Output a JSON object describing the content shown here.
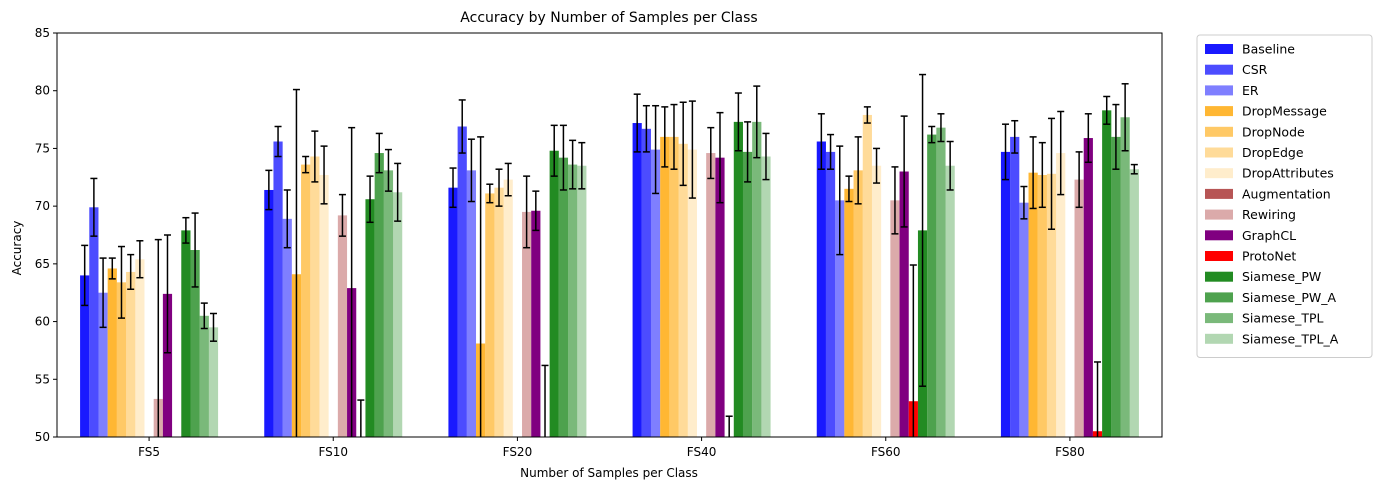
{
  "chart_data": {
    "type": "bar",
    "title": "Accuracy by Number of Samples per Class",
    "xlabel": "Number of Samples per Class",
    "ylabel": "Accuracy",
    "ylim": [
      50,
      85
    ],
    "yticks": [
      50,
      55,
      60,
      65,
      70,
      75,
      80,
      85
    ],
    "categories": [
      "FS5",
      "FS10",
      "FS20",
      "FS40",
      "FS60",
      "FS80"
    ],
    "legend_position": "outside-right",
    "grid": false,
    "series": [
      {
        "name": "Baseline",
        "color": "#0000ff",
        "opacity": 0.9,
        "values": [
          64.0,
          71.4,
          71.6,
          77.2,
          75.6,
          74.7
        ],
        "errors": [
          2.6,
          1.7,
          1.7,
          2.5,
          2.4,
          2.4
        ]
      },
      {
        "name": "CSR",
        "color": "#0000ff",
        "opacity": 0.7,
        "values": [
          69.9,
          75.6,
          76.9,
          76.7,
          74.7,
          76.0
        ],
        "errors": [
          2.5,
          1.3,
          2.3,
          2.0,
          1.5,
          1.4
        ]
      },
      {
        "name": "ER",
        "color": "#0000ff",
        "opacity": 0.5,
        "values": [
          62.5,
          68.9,
          73.1,
          74.9,
          70.5,
          70.3
        ],
        "errors": [
          3.0,
          2.5,
          2.7,
          3.8,
          4.7,
          1.4
        ]
      },
      {
        "name": "DropMessage",
        "color": "#ffa500",
        "opacity": 0.8,
        "values": [
          64.6,
          64.1,
          58.1,
          76.0,
          71.5,
          72.9
        ],
        "errors": [
          0.9,
          16.0,
          17.9,
          2.6,
          1.1,
          3.1
        ]
      },
      {
        "name": "DropNode",
        "color": "#ffa500",
        "opacity": 0.6,
        "values": [
          63.4,
          73.6,
          71.1,
          76.0,
          73.1,
          72.7
        ],
        "errors": [
          3.1,
          0.7,
          0.8,
          2.8,
          2.9,
          2.8
        ]
      },
      {
        "name": "DropEdge",
        "color": "#ffa500",
        "opacity": 0.4,
        "values": [
          64.3,
          74.3,
          71.6,
          75.4,
          77.9,
          72.8
        ],
        "errors": [
          1.5,
          2.2,
          1.6,
          3.6,
          0.7,
          4.8
        ]
      },
      {
        "name": "DropAttributes",
        "color": "#ffa500",
        "opacity": 0.2,
        "values": [
          65.4,
          72.7,
          72.3,
          74.9,
          73.5,
          74.6
        ],
        "errors": [
          1.6,
          2.5,
          1.4,
          4.2,
          1.5,
          3.6
        ]
      },
      {
        "name": "Augmentation",
        "color": "#a52a2a",
        "opacity": 0.8,
        "values": [
          50.0,
          50.0,
          50.0,
          50.0,
          50.0,
          50.0
        ],
        "errors": [
          0,
          0,
          0,
          0,
          0,
          0
        ]
      },
      {
        "name": "Rewiring",
        "color": "#a52a2a",
        "opacity": 0.4,
        "values": [
          53.3,
          69.2,
          69.5,
          74.6,
          70.5,
          72.3
        ],
        "errors": [
          13.8,
          1.8,
          3.1,
          2.2,
          2.9,
          2.4
        ]
      },
      {
        "name": "GraphCL",
        "color": "#800080",
        "opacity": 1.0,
        "values": [
          62.4,
          62.9,
          69.6,
          74.2,
          73.0,
          75.9
        ],
        "errors": [
          5.1,
          13.9,
          1.7,
          3.9,
          4.8,
          2.1
        ]
      },
      {
        "name": "ProtoNet",
        "color": "#ff0000",
        "opacity": 1.0,
        "values": [
          50.0,
          50.0,
          50.0,
          50.0,
          53.1,
          50.5
        ],
        "errors": [
          0,
          3.2,
          6.2,
          1.8,
          11.8,
          6.0
        ]
      },
      {
        "name": "Siamese_PW",
        "color": "#228b22",
        "opacity": 1.0,
        "values": [
          67.9,
          70.6,
          74.8,
          77.3,
          67.9,
          78.3
        ],
        "errors": [
          1.1,
          2.0,
          2.2,
          2.5,
          13.5,
          1.2
        ]
      },
      {
        "name": "Siamese_PW_A",
        "color": "#228b22",
        "opacity": 0.8,
        "values": [
          66.2,
          74.6,
          74.2,
          74.7,
          76.2,
          76.0
        ],
        "errors": [
          3.2,
          1.7,
          2.8,
          2.6,
          0.7,
          2.8
        ]
      },
      {
        "name": "Siamese_TPL",
        "color": "#228b22",
        "opacity": 0.6,
        "values": [
          60.5,
          73.1,
          73.6,
          77.3,
          76.8,
          77.7
        ],
        "errors": [
          1.1,
          1.8,
          2.1,
          3.1,
          1.2,
          2.9
        ]
      },
      {
        "name": "Siamese_TPL_A",
        "color": "#228b22",
        "opacity": 0.35,
        "values": [
          59.5,
          71.2,
          73.5,
          74.3,
          73.5,
          73.2
        ],
        "errors": [
          1.2,
          2.5,
          2.0,
          2.0,
          2.1,
          0.4
        ]
      }
    ]
  }
}
